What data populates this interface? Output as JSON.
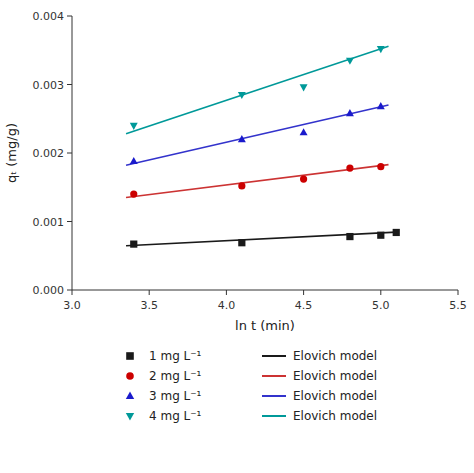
{
  "chart_data": {
    "type": "scatter",
    "xlabel": "ln t (min)",
    "ylabel": "qₜ (mg/g)",
    "xlim": [
      3.0,
      5.5
    ],
    "ylim": [
      0.0,
      0.004
    ],
    "xticks": [
      {
        "value": 3.0,
        "label": "3.0"
      },
      3.5,
      {
        "value": 4.0,
        "label": "4.0"
      },
      4.5,
      {
        "value": 5.0,
        "label": "5.0"
      },
      5.5
    ],
    "yticks": [
      {
        "value": 0.0,
        "label": "0.000"
      },
      0.001,
      0.002,
      0.003,
      0.004
    ],
    "grid": false,
    "legend": "bottom",
    "series": [
      {
        "name": "1 mg L⁻¹",
        "type": "scatter",
        "marker": "square",
        "color": "#1a1a1a",
        "x": [
          3.4,
          4.1,
          4.8,
          5.0,
          5.1
        ],
        "values": [
          0.00067,
          0.00069,
          0.00078,
          0.0008,
          0.00084
        ]
      },
      {
        "name": "Elovich model",
        "type": "line",
        "color": "#1a1a1a",
        "x": [
          3.35,
          5.1
        ],
        "values": [
          0.000645,
          0.000845
        ]
      },
      {
        "name": "2 mg L⁻¹",
        "type": "scatter",
        "marker": "circle",
        "color": "#cc0000",
        "x": [
          3.4,
          4.1,
          4.5,
          4.8,
          5.0
        ],
        "values": [
          0.0014,
          0.00152,
          0.00162,
          0.00178,
          0.0018
        ]
      },
      {
        "name": "Elovich model",
        "type": "line",
        "color": "#cc3333",
        "x": [
          3.35,
          5.05
        ],
        "values": [
          0.00135,
          0.00183
        ]
      },
      {
        "name": "3 mg L⁻¹",
        "type": "scatter",
        "marker": "triangle-up",
        "color": "#1a1acc",
        "x": [
          3.4,
          4.1,
          4.5,
          4.8,
          5.0
        ],
        "values": [
          0.00188,
          0.0022,
          0.0023,
          0.00258,
          0.00268
        ]
      },
      {
        "name": "Elovich model",
        "type": "line",
        "color": "#3333cc",
        "x": [
          3.35,
          5.05
        ],
        "values": [
          0.00182,
          0.0027
        ]
      },
      {
        "name": "4 mg L⁻¹",
        "type": "scatter",
        "marker": "triangle-down",
        "color": "#009999",
        "x": [
          3.4,
          4.1,
          4.5,
          4.8,
          5.0
        ],
        "values": [
          0.0024,
          0.00285,
          0.00296,
          0.00335,
          0.00352
        ]
      },
      {
        "name": "Elovich model",
        "type": "line",
        "color": "#009999",
        "x": [
          3.35,
          5.05
        ],
        "values": [
          0.00228,
          0.00356
        ]
      }
    ]
  }
}
